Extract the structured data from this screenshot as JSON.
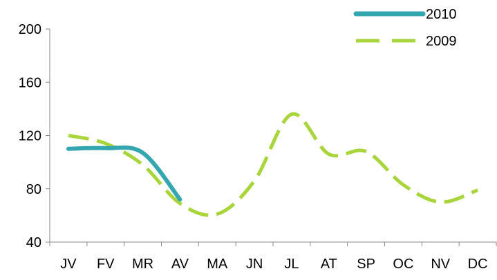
{
  "chart_data": {
    "type": "line",
    "categories": [
      "JV",
      "FV",
      "MR",
      "AV",
      "MA",
      "JN",
      "JL",
      "AT",
      "SP",
      "OC",
      "NV",
      "DC"
    ],
    "ylim": [
      40,
      200
    ],
    "yticks": [
      "40",
      "80",
      "120",
      "160",
      "200"
    ],
    "grid": false,
    "legend_position": "top-right",
    "series": [
      {
        "name": "2010",
        "color": "#33A6B0",
        "style": "solid",
        "values": [
          110,
          110.5,
          107,
          72,
          null,
          null,
          null,
          null,
          null,
          null,
          null,
          null
        ]
      },
      {
        "name": "2009",
        "color": "#A8D43C",
        "style": "dashed",
        "values": [
          120,
          114,
          98,
          69,
          61,
          86,
          136,
          106,
          108,
          83,
          70,
          79
        ]
      }
    ]
  }
}
